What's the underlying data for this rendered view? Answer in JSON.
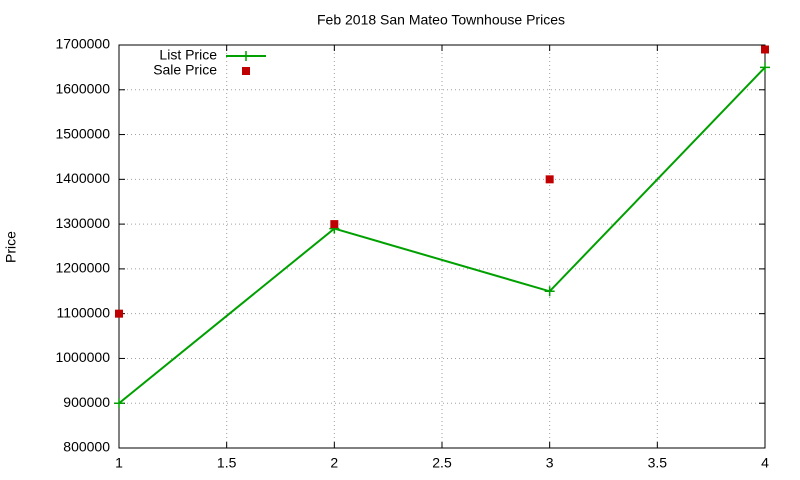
{
  "chart_data": {
    "type": "line",
    "title": "Feb 2018 San Mateo Townhouse Prices",
    "y_label": "Price",
    "x": [
      1,
      2,
      3,
      4
    ],
    "series": [
      {
        "name": "List Price",
        "color": "#00a000",
        "values": [
          900000,
          1290000,
          1150000,
          1650000
        ],
        "line": true,
        "marker": "plus"
      },
      {
        "name": "Sale Price",
        "color": "#c00000",
        "values": [
          1100000,
          1300000,
          1400000,
          1690000
        ],
        "line": false,
        "marker": "square"
      }
    ],
    "xlim": [
      1,
      4
    ],
    "xticks": [
      1,
      1.5,
      2,
      2.5,
      3,
      3.5,
      4
    ],
    "ylim": [
      800000,
      1700000
    ],
    "yticks": [
      800000,
      900000,
      1000000,
      1100000,
      1200000,
      1300000,
      1400000,
      1500000,
      1600000,
      1700000
    ],
    "grid": true,
    "legend": "top-left"
  }
}
